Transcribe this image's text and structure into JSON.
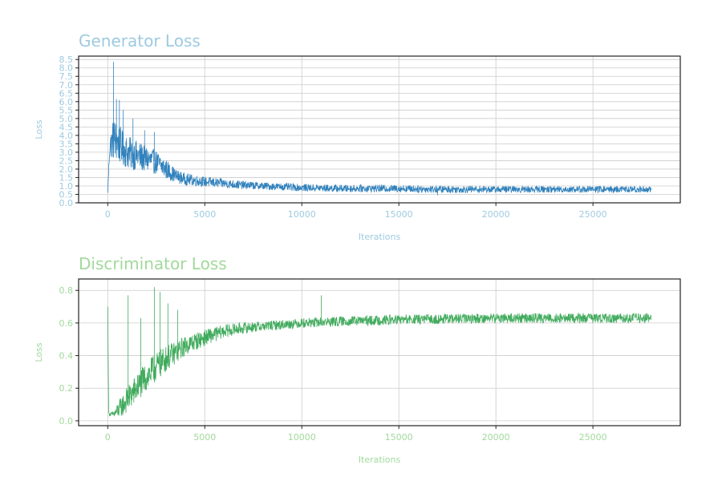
{
  "chart_data": [
    {
      "type": "line",
      "title": "Generator Loss",
      "xlabel": "Iterations",
      "ylabel": "Loss",
      "xlim": [
        -1500,
        29500
      ],
      "ylim": [
        0.0,
        8.7
      ],
      "xticks": [
        0,
        5000,
        10000,
        15000,
        20000,
        25000
      ],
      "yticks": [
        0.0,
        0.5,
        1.0,
        1.5,
        2.0,
        2.5,
        3.0,
        3.5,
        4.0,
        4.5,
        5.0,
        5.5,
        6.0,
        6.5,
        7.0,
        7.5,
        8.0,
        8.5
      ],
      "ytick_decimals": 1,
      "grid": true,
      "color": "#3182bd",
      "label_color": "#9ecae1",
      "series": [
        {
          "x": [
            0,
            100,
            300,
            500,
            800,
            1000,
            1500,
            2000,
            2500,
            3000,
            3500,
            4000,
            5000,
            6000,
            7000,
            8000,
            9000,
            10000,
            12000,
            15000,
            17000,
            20000,
            25000,
            28000
          ],
          "y": [
            0.6,
            3.3,
            3.8,
            3.6,
            3.2,
            3.0,
            2.8,
            2.6,
            2.4,
            2.0,
            1.6,
            1.4,
            1.25,
            1.15,
            1.05,
            1.0,
            0.95,
            0.9,
            0.85,
            0.85,
            0.8,
            0.8,
            0.8,
            0.8
          ],
          "noise": [
            0,
            0.6,
            1.3,
            1.2,
            1.0,
            1.0,
            0.9,
            0.8,
            0.7,
            0.6,
            0.4,
            0.35,
            0.3,
            0.28,
            0.25,
            0.22,
            0.22,
            0.22,
            0.22,
            0.22,
            0.22,
            0.2,
            0.2,
            0.2
          ]
        }
      ],
      "spikes": [
        [
          300,
          8.35
        ],
        [
          450,
          6.15
        ],
        [
          600,
          6.1
        ],
        [
          800,
          5.5
        ],
        [
          1300,
          5.0
        ],
        [
          1900,
          4.3
        ],
        [
          2400,
          4.2
        ],
        [
          17000,
          0.45
        ]
      ]
    },
    {
      "type": "line",
      "title": "Discriminator Loss",
      "xlabel": "Iterations",
      "ylabel": "Loss",
      "xlim": [
        -1500,
        29500
      ],
      "ylim": [
        -0.03,
        0.87
      ],
      "xticks": [
        0,
        5000,
        10000,
        15000,
        20000,
        25000
      ],
      "yticks": [
        0.0,
        0.2,
        0.4,
        0.6,
        0.8
      ],
      "ytick_decimals": 1,
      "grid": true,
      "color": "#41ab5d",
      "label_color": "#a1d99b",
      "series": [
        {
          "x": [
            0,
            50,
            100,
            300,
            500,
            800,
            1000,
            1500,
            2000,
            2500,
            3000,
            3500,
            4000,
            5000,
            6000,
            7000,
            8000,
            9000,
            10000,
            12000,
            15000,
            20000,
            25000,
            28000
          ],
          "y": [
            0.7,
            0.05,
            0.04,
            0.04,
            0.06,
            0.1,
            0.13,
            0.2,
            0.27,
            0.33,
            0.38,
            0.42,
            0.46,
            0.51,
            0.55,
            0.57,
            0.58,
            0.59,
            0.6,
            0.61,
            0.62,
            0.63,
            0.63,
            0.63
          ],
          "noise": [
            0,
            0.01,
            0.01,
            0.02,
            0.05,
            0.07,
            0.08,
            0.09,
            0.09,
            0.09,
            0.08,
            0.07,
            0.06,
            0.05,
            0.04,
            0.035,
            0.03,
            0.03,
            0.03,
            0.03,
            0.03,
            0.03,
            0.03,
            0.03
          ]
        }
      ],
      "spikes": [
        [
          1050,
          0.77
        ],
        [
          1700,
          0.63
        ],
        [
          2400,
          0.82
        ],
        [
          2700,
          0.79
        ],
        [
          3100,
          0.72
        ],
        [
          3600,
          0.68
        ],
        [
          11000,
          0.77
        ]
      ]
    }
  ]
}
